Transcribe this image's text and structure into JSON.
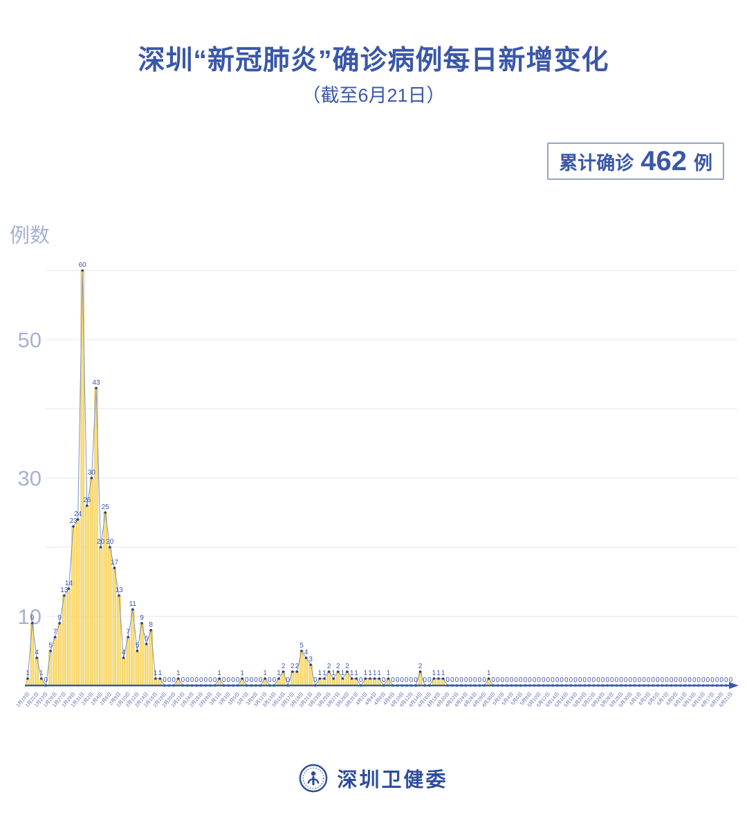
{
  "title": "深圳“新冠肺炎”确诊病例每日新增变化",
  "subtitle": "（截至6月21日）",
  "badge": {
    "prefix": "累计确诊",
    "value": "462",
    "suffix": "例"
  },
  "footer": {
    "brand": "深圳卫健委"
  },
  "colors": {
    "primary": "#3a57a8",
    "axis_labels": "#a7b1d4",
    "grid": "#ebebf0",
    "bar_fill": "#ffe172",
    "bar_edge": "#e2b84e",
    "line": "#7a91c9",
    "marker": "#24408c",
    "value_label": "#3a57a8",
    "x_label": "#5c6cae",
    "badge_border": "#94a2c6",
    "brand": "#2e4d9e"
  },
  "chart_data": {
    "type": "line",
    "title": "深圳“新冠肺炎”确诊病例每日新增变化（截至6月21日）",
    "subtitle_note": "累计确诊 462 例",
    "ylabel": "例数",
    "xlabel": "",
    "ylim": [
      0,
      62
    ],
    "grid": "horizontal",
    "legend": "none",
    "fill_style": "yellow vertical bars under blue line with point markers and value labels",
    "gridlines": [
      10,
      20,
      30,
      40,
      50,
      60
    ],
    "yticks_labeled": [
      10,
      30,
      50
    ],
    "x_tick_every": 2,
    "x_tick_labels": [
      "1月19日",
      "1月21日",
      "1月23日",
      "1月25日",
      "1月27日",
      "1月29日",
      "1月31日",
      "2月2日",
      "2月4日",
      "2月6日",
      "2月8日",
      "2月10日",
      "2月12日",
      "2月14日",
      "2月16日",
      "2月18日",
      "2月20日",
      "2月22日",
      "2月24日",
      "2月26日",
      "2月28日",
      "3月1日",
      "3月3日",
      "3月5日",
      "3月7日",
      "3月9日",
      "3月11日",
      "3月13日",
      "3月15日",
      "3月17日",
      "3月19日",
      "3月21日",
      "3月23日",
      "3月25日",
      "3月27日",
      "3月29日",
      "3月31日",
      "4月2日",
      "4月4日",
      "4月6日",
      "4月8日",
      "4月10日",
      "4月12日",
      "4月14日",
      "4月16日",
      "4月18日",
      "4月20日",
      "4月22日",
      "4月24日",
      "4月26日",
      "4月28日",
      "4月30日",
      "5月2日",
      "5月4日",
      "5月6日",
      "5月8日",
      "5月10日",
      "5月12日",
      "5月14日",
      "5月16日",
      "5月18日",
      "5月20日",
      "5月22日",
      "5月24日",
      "5月26日",
      "5月28日",
      "5月30日",
      "6月1日",
      "6月3日",
      "6月5日",
      "6月7日",
      "6月9日",
      "6月11日",
      "6月13日",
      "6月15日",
      "6月17日",
      "6月19日",
      "6月21日"
    ],
    "values": [
      1,
      9,
      4,
      1,
      0,
      5,
      7,
      9,
      13,
      14,
      23,
      24,
      60,
      26,
      30,
      43,
      20,
      25,
      20,
      17,
      13,
      4,
      7,
      11,
      5,
      9,
      6,
      8,
      1,
      1,
      0,
      0,
      0,
      1,
      0,
      0,
      0,
      0,
      0,
      0,
      0,
      0,
      1,
      0,
      0,
      0,
      0,
      1,
      0,
      0,
      0,
      0,
      1,
      0,
      0,
      1,
      2,
      0,
      2,
      2,
      5,
      4,
      3,
      0,
      1,
      1,
      2,
      1,
      2,
      1,
      2,
      1,
      1,
      0,
      1,
      1,
      1,
      1,
      0,
      1,
      0,
      0,
      0,
      0,
      0,
      0,
      2,
      0,
      0,
      1,
      1,
      1,
      0,
      0,
      0,
      0,
      0,
      0,
      0,
      0,
      0,
      1,
      0,
      0,
      0,
      0,
      0,
      0,
      0,
      0,
      0,
      0,
      0,
      0,
      0,
      0,
      0,
      0,
      0,
      0,
      0,
      0,
      0,
      0,
      0,
      0,
      0,
      0,
      0,
      0,
      0,
      0,
      0,
      0,
      0,
      0,
      0,
      0,
      0,
      0,
      0,
      0,
      0,
      0,
      0,
      0,
      0,
      0,
      0,
      0,
      0,
      0,
      0,
      0,
      0
    ],
    "total": 462
  }
}
